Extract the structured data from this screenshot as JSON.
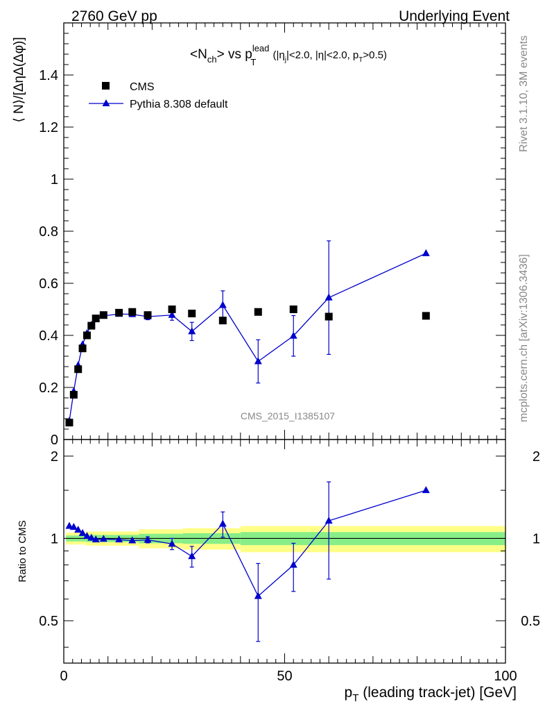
{
  "header": {
    "left": "2760 GeV pp",
    "right": "Underlying Event"
  },
  "side_labels": {
    "top": "Rivet 3.1.10,  3M events",
    "bottom": "mcplots.cern.ch [arXiv:1306.3436]"
  },
  "watermark": "CMS_2015_I1385107",
  "chart_data": [
    {
      "type": "scatter",
      "panel": "main",
      "title": {
        "part1": "<N",
        "sub1": "ch",
        "part2": "> vs p",
        "sub2": "T",
        "sup2": "lead",
        "cut_open": " (|η",
        "cut_sub_j": "j",
        "cut_mid": "|<2.0, |η|<2.0, p",
        "cut_sub_T": "T",
        "cut_close": ">0.5)"
      },
      "ylabel": "⟨ N⟩/[ΔηΔ(Δφ)]",
      "xlim": [
        0,
        100
      ],
      "ylim": [
        0,
        1.6
      ],
      "yticks": [
        0,
        0.2,
        0.4,
        0.6,
        0.8,
        1,
        1.2,
        1.4
      ],
      "ytick_labels": [
        "0",
        "0.2",
        "0.4",
        "0.6",
        "0.8",
        "1",
        "1.2",
        "1.4"
      ],
      "legend_position": "top-left",
      "series": [
        {
          "name": "CMS",
          "marker": "square",
          "color": "#000000",
          "x": [
            1.25,
            2.25,
            3.25,
            4.25,
            5.25,
            6.25,
            7.25,
            9,
            12.5,
            15.5,
            19,
            24.5,
            29,
            36,
            44,
            52,
            60,
            82
          ],
          "y": [
            0.065,
            0.172,
            0.27,
            0.35,
            0.4,
            0.437,
            0.465,
            0.478,
            0.487,
            0.49,
            0.478,
            0.5,
            0.484,
            0.457,
            0.49,
            0.5,
            0.472,
            0.475
          ],
          "yerr": [
            0,
            0,
            0,
            0,
            0,
            0,
            0,
            0,
            0,
            0,
            0,
            0,
            0,
            0,
            0,
            0,
            0,
            0
          ]
        },
        {
          "name": "Pythia 8.308 default",
          "marker": "triangle",
          "color": "#0000cc",
          "x": [
            1.25,
            2.25,
            3.25,
            4.25,
            5.25,
            6.25,
            7.25,
            9,
            12.5,
            15.5,
            19,
            24.5,
            29,
            36,
            44,
            52,
            60,
            82
          ],
          "y": [
            0.071,
            0.185,
            0.285,
            0.365,
            0.408,
            0.44,
            0.463,
            0.475,
            0.482,
            0.481,
            0.472,
            0.478,
            0.415,
            0.516,
            0.3,
            0.398,
            0.545,
            0.715
          ],
          "yerr": [
            0.004,
            0.005,
            0.005,
            0.005,
            0.006,
            0.006,
            0.006,
            0.007,
            0.008,
            0.009,
            0.012,
            0.02,
            0.035,
            0.055,
            0.083,
            0.078,
            0.218,
            0.008
          ]
        }
      ]
    },
    {
      "type": "scatter",
      "panel": "ratio",
      "ylabel": "Ratio to CMS",
      "xlabel_main": "p",
      "xlabel_sub": "T",
      "xlabel_rest": " (leading track-jet) [GeV]",
      "xlim": [
        0,
        100
      ],
      "xticks": [
        0,
        50,
        100
      ],
      "xtick_labels": [
        "0",
        "50",
        "100"
      ],
      "ylim": [
        0.35,
        2.3
      ],
      "yticks": [
        0.5,
        1,
        2
      ],
      "ytick_labels": [
        "0.5",
        "1",
        "2"
      ],
      "reference": 1,
      "bands": [
        {
          "x0": 0.5,
          "x1": 5,
          "green": 0.025,
          "yellow": 0.05
        },
        {
          "x0": 5,
          "x1": 17,
          "green": 0.03,
          "yellow": 0.06
        },
        {
          "x0": 17,
          "x1": 27,
          "green": 0.04,
          "yellow": 0.08
        },
        {
          "x0": 27,
          "x1": 40,
          "green": 0.045,
          "yellow": 0.09
        },
        {
          "x0": 40,
          "x1": 100,
          "green": 0.055,
          "yellow": 0.11
        }
      ],
      "series": [
        {
          "name": "Pythia 8.308 default",
          "marker": "triangle",
          "color": "#0000cc",
          "x": [
            1.25,
            2.25,
            3.25,
            4.25,
            5.25,
            6.25,
            7.25,
            9,
            12.5,
            15.5,
            19,
            24.5,
            29,
            36,
            44,
            52,
            60,
            82
          ],
          "y": [
            1.11,
            1.1,
            1.075,
            1.045,
            1.02,
            1.005,
            0.99,
            0.995,
            0.99,
            0.982,
            0.988,
            0.955,
            0.86,
            1.13,
            0.615,
            0.8,
            1.16,
            1.5
          ],
          "yerr": [
            0.01,
            0.01,
            0.01,
            0.01,
            0.01,
            0.01,
            0.01,
            0.01,
            0.015,
            0.015,
            0.025,
            0.045,
            0.075,
            0.12,
            0.195,
            0.16,
            0.45,
            0.02
          ]
        }
      ]
    }
  ]
}
